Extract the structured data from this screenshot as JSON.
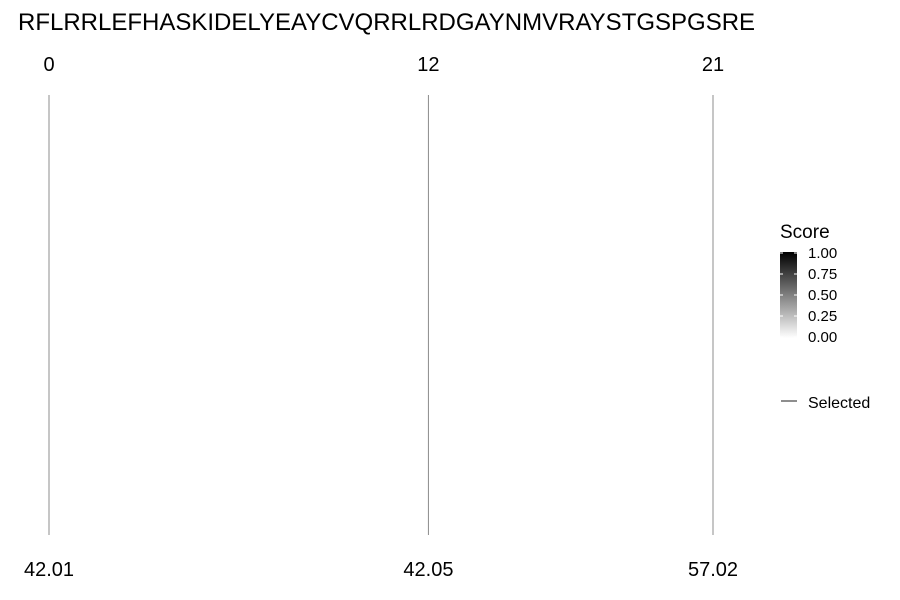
{
  "chart_data": {
    "type": "line",
    "title": "RFLRRLEFHASKIDELYEAYCVQRRLRDGAYNMVRAYSTGSPGSRE",
    "x_range": [
      0,
      21
    ],
    "lines": [
      {
        "position": 0,
        "top_label": "0",
        "bottom_label": "42.01"
      },
      {
        "position": 12,
        "top_label": "12",
        "bottom_label": "42.05"
      },
      {
        "position": 21,
        "top_label": "21",
        "bottom_label": "57.02"
      }
    ],
    "legend": {
      "title": "Score",
      "gradient_colors": [
        "#ffffff",
        "#000000"
      ],
      "range": [
        0,
        1
      ],
      "ticks": [
        "1.00",
        "0.75",
        "0.50",
        "0.25",
        "0.00"
      ],
      "item_label": "Selected",
      "item_color": "#444444"
    },
    "line_color": "#8c8c8c"
  }
}
